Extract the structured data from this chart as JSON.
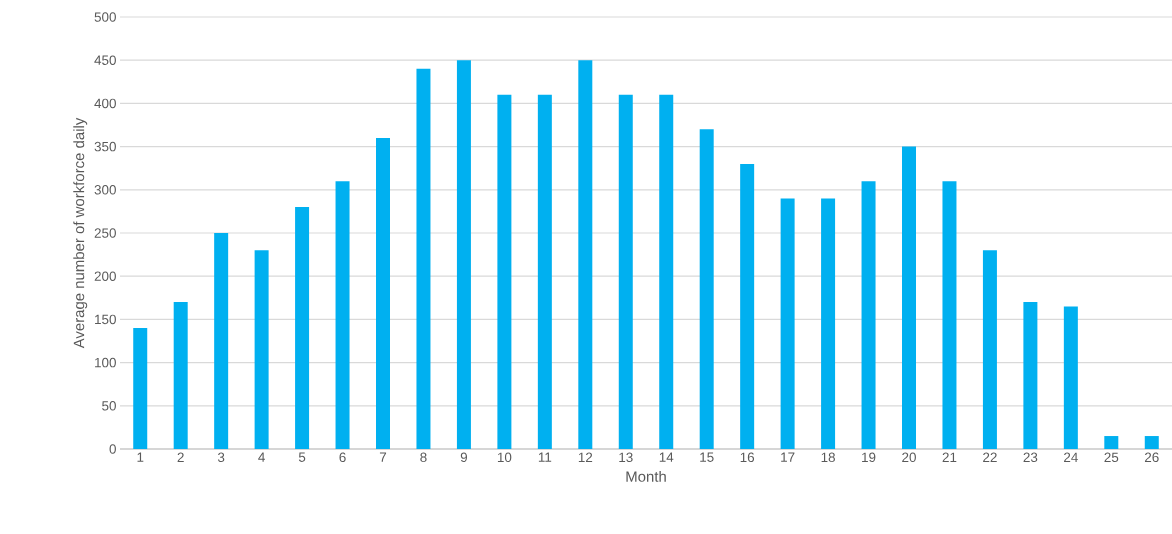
{
  "chart_data": {
    "type": "bar",
    "xlabel": "Month",
    "ylabel": "Average number of workforce daily",
    "categories": [
      "1",
      "2",
      "3",
      "4",
      "5",
      "6",
      "7",
      "8",
      "9",
      "10",
      "11",
      "12",
      "13",
      "14",
      "15",
      "16",
      "17",
      "18",
      "19",
      "20",
      "21",
      "22",
      "23",
      "24",
      "25",
      "26"
    ],
    "values": [
      140,
      170,
      250,
      230,
      280,
      310,
      360,
      440,
      450,
      410,
      410,
      450,
      410,
      410,
      370,
      330,
      290,
      290,
      310,
      350,
      310,
      230,
      170,
      165,
      15,
      15
    ],
    "color": "#00b0f0",
    "ylim": [
      0,
      500
    ],
    "yticks": [
      0,
      50,
      100,
      150,
      200,
      250,
      300,
      350,
      400,
      450,
      500
    ],
    "grid": "y"
  }
}
